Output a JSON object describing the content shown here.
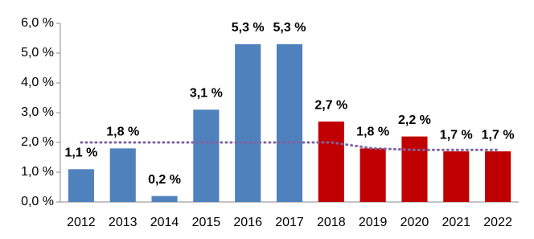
{
  "chart_data": {
    "type": "bar",
    "categories": [
      "2012",
      "2013",
      "2014",
      "2015",
      "2016",
      "2017",
      "2018",
      "2019",
      "2020",
      "2021",
      "2022"
    ],
    "values": [
      1.1,
      1.8,
      0.2,
      3.1,
      5.3,
      5.3,
      2.7,
      1.8,
      2.2,
      1.7,
      1.7
    ],
    "value_labels": [
      "1,1 %",
      "1,8 %",
      "0,2 %",
      "3,1 %",
      "5,3 %",
      "5,3 %",
      "2,7 %",
      "1,8 %",
      "2,2 %",
      "1,7 %",
      "1,7 %"
    ],
    "colors": [
      "#4f81bd",
      "#4f81bd",
      "#4f81bd",
      "#4f81bd",
      "#4f81bd",
      "#4f81bd",
      "#c00000",
      "#c00000",
      "#c00000",
      "#c00000",
      "#c00000"
    ],
    "line": {
      "values": [
        2.0,
        2.0,
        2.0,
        2.0,
        2.0,
        2.0,
        2.0,
        1.8,
        1.75,
        1.75,
        1.75
      ],
      "color": "#8064a2"
    },
    "ylim": [
      0,
      6
    ],
    "yticks": [
      {
        "value": 0,
        "label": "0,0 %"
      },
      {
        "value": 1,
        "label": "1,0 %"
      },
      {
        "value": 2,
        "label": "2,0 %"
      },
      {
        "value": 3,
        "label": "3,0 %"
      },
      {
        "value": 4,
        "label": "4,0 %"
      },
      {
        "value": 5,
        "label": "5,0 %"
      },
      {
        "value": 6,
        "label": "6,0 %"
      }
    ]
  }
}
